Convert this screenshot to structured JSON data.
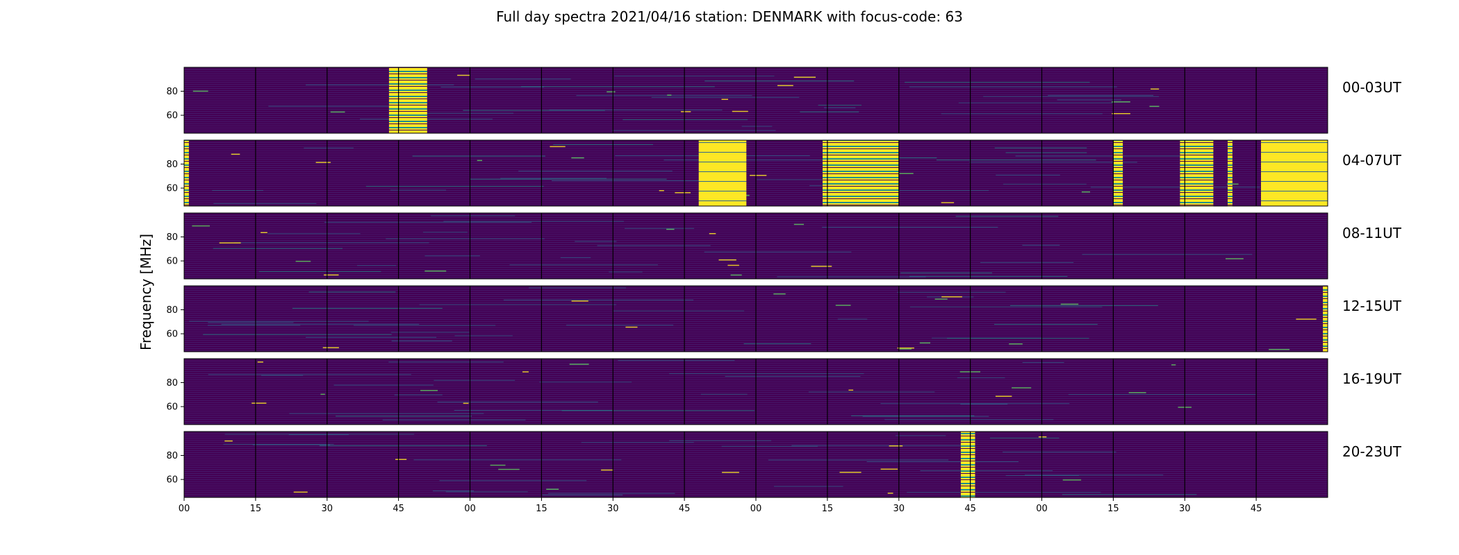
{
  "chart_data": {
    "type": "heatmap",
    "title": "Full day spectra 2021/04/16 station: DENMARK with focus-code: 63",
    "ylabel": "Frequency [MHz]",
    "xlabel": "",
    "colormap": "viridis",
    "colors": {
      "background": "#440154",
      "mid": "#31688e",
      "teal": "#21918c",
      "green": "#5ec962",
      "yellow": "#fde725",
      "separator": "#000000"
    },
    "x_tick_labels": [
      "00",
      "15",
      "30",
      "45",
      "00",
      "15",
      "30",
      "45",
      "00",
      "15",
      "30",
      "45",
      "00",
      "15",
      "30",
      "45"
    ],
    "y_ticks": [
      60,
      80
    ],
    "y_range": [
      45,
      100
    ],
    "panels_per_row": 16,
    "panel_minutes": 15,
    "rows": [
      {
        "label": "00-03UT",
        "bursts": [
          {
            "from_min": 43,
            "to_min": 51,
            "level": "yellow",
            "pattern": "stripes"
          }
        ]
      },
      {
        "label": "04-07UT",
        "bursts": [
          {
            "from_min": 0,
            "to_min": 1,
            "level": "yellow",
            "pattern": "stripes"
          },
          {
            "from_min": 108,
            "to_min": 118,
            "level": "yellow",
            "pattern": "solid"
          },
          {
            "from_min": 134,
            "to_min": 150,
            "level": "yellow",
            "pattern": "stripes"
          },
          {
            "from_min": 195,
            "to_min": 197,
            "level": "yellow",
            "pattern": "stripes"
          },
          {
            "from_min": 209,
            "to_min": 216,
            "level": "yellow",
            "pattern": "stripes"
          },
          {
            "from_min": 219,
            "to_min": 220,
            "level": "yellow",
            "pattern": "stripes"
          },
          {
            "from_min": 226,
            "to_min": 240,
            "level": "yellow",
            "pattern": "solid"
          }
        ]
      },
      {
        "label": "08-11UT",
        "bursts": []
      },
      {
        "label": "12-15UT",
        "bursts": [
          {
            "from_min": 239,
            "to_min": 240,
            "level": "yellow",
            "pattern": "stripes"
          }
        ]
      },
      {
        "label": "16-19UT",
        "bursts": []
      },
      {
        "label": "20-23UT",
        "bursts": [
          {
            "from_min": 163,
            "to_min": 166,
            "level": "yellow",
            "pattern": "stripes"
          }
        ]
      }
    ]
  }
}
